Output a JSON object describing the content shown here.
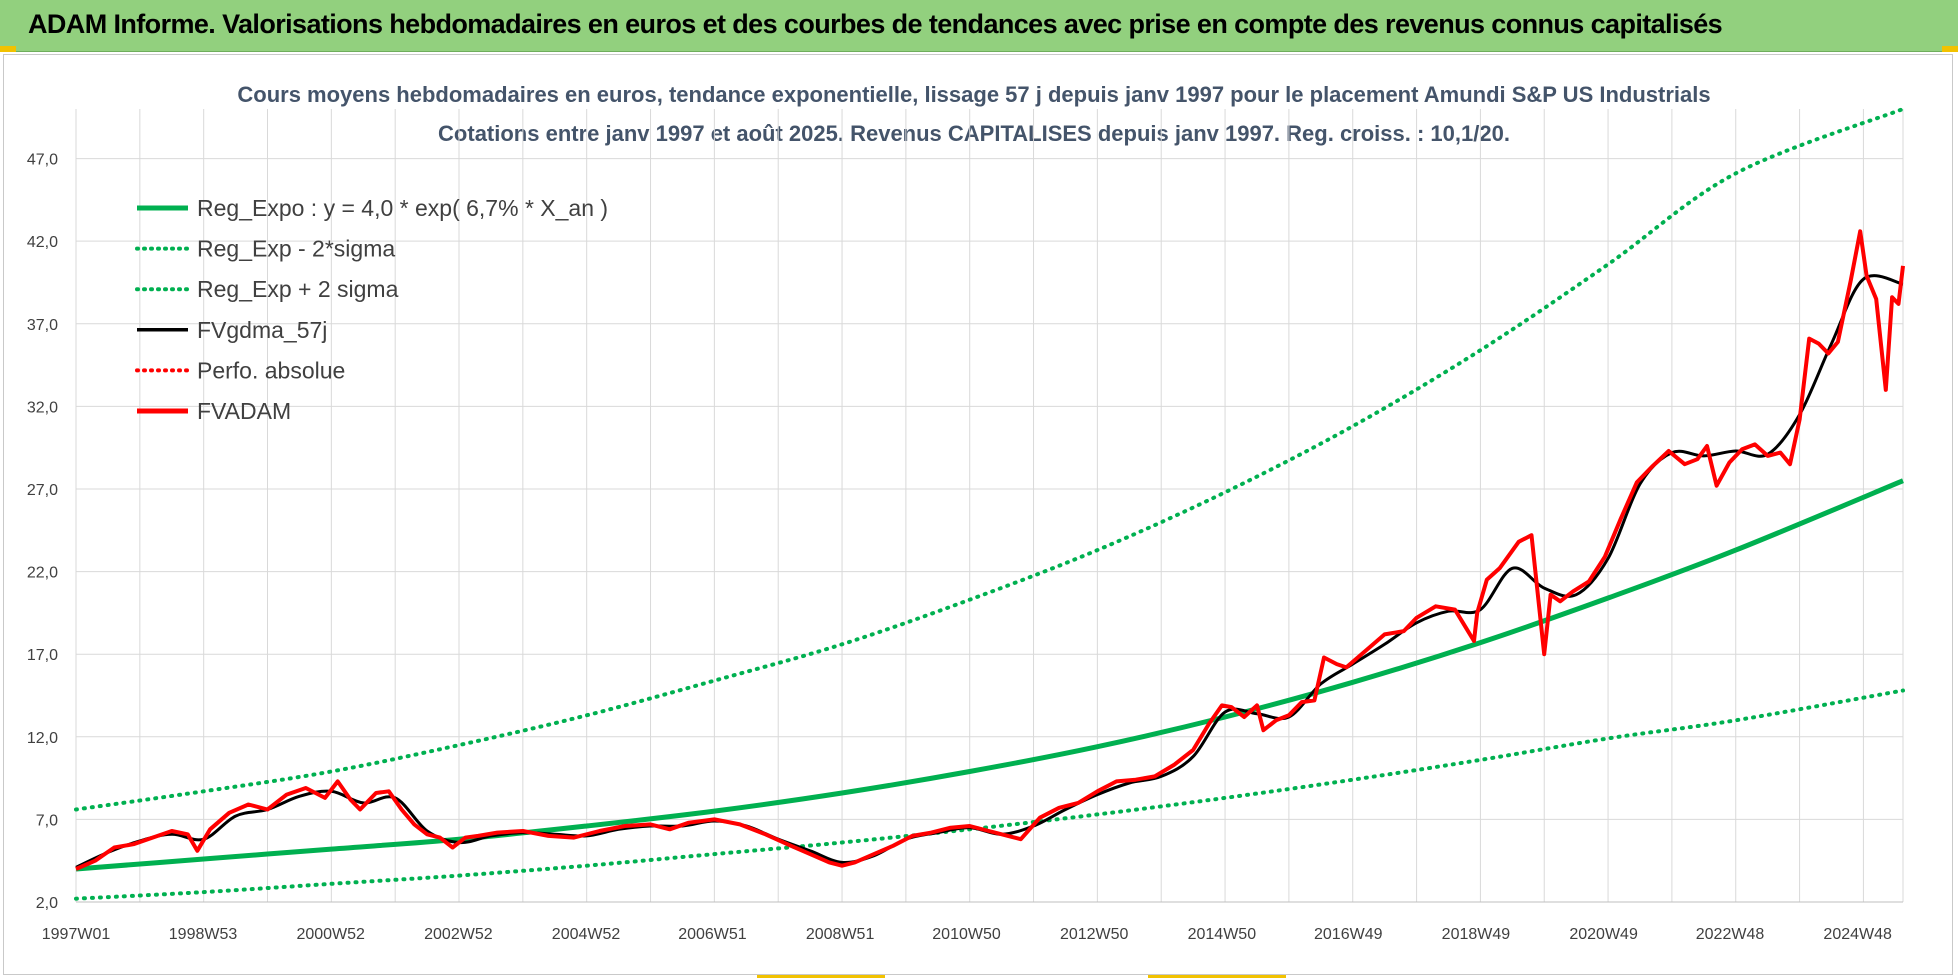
{
  "banner": {
    "title": "ADAM Informe. Valorisations hebdomadaires en euros et des courbes de tendances avec prise en compte des revenus connus capitalisés"
  },
  "colors": {
    "banner_bg": "#92d07e",
    "trend": "#00b050",
    "gdma": "#000000",
    "fvadam": "#ff0000",
    "grid": "#d9d9d9",
    "title": "#44546a"
  },
  "chart_data": {
    "type": "line",
    "title": "Cours moyens hebdomadaires en euros, tendance exponentielle, lissage 57 j depuis janv 1997 pour le placement Amundi S&P US Industrials",
    "subtitle": "Cotations entre janv 1997 et août 2025. Revenus CAPITALISES depuis janv 1997. Reg. croiss. : 10,1/20.",
    "xlabel": "",
    "ylabel": "",
    "x_range": [
      1997.0,
      2025.62
    ],
    "ylim": [
      2.0,
      50.0
    ],
    "y_ticks": [
      "2,0",
      "7,0",
      "12,0",
      "17,0",
      "22,0",
      "27,0",
      "32,0",
      "37,0",
      "42,0",
      "47,0"
    ],
    "x_ticks": [
      {
        "label": "1997W01",
        "x": 1997.0
      },
      {
        "label": "1998W53",
        "x": 1998.99
      },
      {
        "label": "2000W52",
        "x": 2000.99
      },
      {
        "label": "2002W52",
        "x": 2002.99
      },
      {
        "label": "2004W52",
        "x": 2004.99
      },
      {
        "label": "2006W51",
        "x": 2006.97
      },
      {
        "label": "2008W51",
        "x": 2008.97
      },
      {
        "label": "2010W50",
        "x": 2010.95
      },
      {
        "label": "2012W50",
        "x": 2012.95
      },
      {
        "label": "2014W50",
        "x": 2014.95
      },
      {
        "label": "2016W49",
        "x": 2016.93
      },
      {
        "label": "2018W49",
        "x": 2018.93
      },
      {
        "label": "2020W49",
        "x": 2020.93
      },
      {
        "label": "2022W48",
        "x": 2022.91
      },
      {
        "label": "2024W48",
        "x": 2024.91
      }
    ],
    "grid": true,
    "legend_position": "top-left",
    "legend": [
      {
        "label": "Reg_Expo : y = 4,0 * exp( 6,7% *  X_an )",
        "color": "#00b050",
        "style": "solid-thick"
      },
      {
        "label": "Reg_Exp - 2*sigma",
        "color": "#00b050",
        "style": "dotted"
      },
      {
        "label": "Reg_Exp + 2 sigma",
        "color": "#00b050",
        "style": "dotted"
      },
      {
        "label": "FVgdma_57j",
        "color": "#000000",
        "style": "solid"
      },
      {
        "label": "Perfo. absolue",
        "color": "#ff0000",
        "style": "dotted"
      },
      {
        "label": "FVADAM",
        "color": "#ff0000",
        "style": "solid-thick"
      }
    ],
    "trend_x": [
      1997.0,
      1999.0,
      2001.0,
      2003.0,
      2005.0,
      2007.0,
      2009.0,
      2011.0,
      2013.0,
      2015.0,
      2017.0,
      2019.0,
      2021.0,
      2023.0,
      2025.62
    ],
    "series": [
      {
        "name": "Reg_Expo : y = 4,0 * exp( 6,7% *  X_an )",
        "values": [
          4.0,
          4.6,
          5.2,
          5.8,
          6.6,
          7.5,
          8.6,
          9.9,
          11.4,
          13.2,
          15.3,
          17.7,
          20.4,
          23.3,
          27.5
        ]
      },
      {
        "name": "Reg_Exp - 2*sigma",
        "values": [
          2.2,
          2.6,
          3.1,
          3.6,
          4.2,
          4.9,
          5.6,
          6.4,
          7.3,
          8.3,
          9.4,
          10.6,
          11.9,
          13.0,
          14.8
        ]
      },
      {
        "name": "Reg_Exp + 2 sigma",
        "values": [
          7.6,
          8.7,
          9.9,
          11.5,
          13.3,
          15.4,
          17.6,
          20.3,
          23.3,
          26.8,
          30.8,
          35.4,
          40.6,
          46.1,
          50.0
        ]
      },
      {
        "name": "FVADAM",
        "x": [
          1997.0,
          1997.3,
          1997.6,
          1997.9,
          1998.2,
          1998.5,
          1998.75,
          1998.9,
          1999.1,
          1999.4,
          1999.7,
          2000.0,
          2000.3,
          2000.6,
          2000.9,
          2001.1,
          2001.3,
          2001.45,
          2001.7,
          2001.9,
          2002.1,
          2002.3,
          2002.5,
          2002.7,
          2002.9,
          2003.1,
          2003.3,
          2003.6,
          2004.0,
          2004.4,
          2004.8,
          2005.2,
          2005.6,
          2006.0,
          2006.3,
          2006.6,
          2007.0,
          2007.4,
          2007.8,
          2008.2,
          2008.5,
          2008.8,
          2009.0,
          2009.2,
          2009.5,
          2009.8,
          2010.1,
          2010.4,
          2010.7,
          2011.0,
          2011.3,
          2011.6,
          2011.8,
          2012.1,
          2012.4,
          2012.7,
          2013.0,
          2013.3,
          2013.6,
          2013.9,
          2014.2,
          2014.5,
          2014.75,
          2014.95,
          2015.1,
          2015.3,
          2015.5,
          2015.6,
          2015.8,
          2016.0,
          2016.2,
          2016.4,
          2016.55,
          2016.75,
          2016.9,
          2017.2,
          2017.5,
          2017.8,
          2018.0,
          2018.3,
          2018.6,
          2018.9,
          2018.95,
          2019.1,
          2019.3,
          2019.6,
          2019.8,
          2020.0,
          2020.1,
          2020.25,
          2020.45,
          2020.7,
          2020.95,
          2021.2,
          2021.45,
          2021.7,
          2021.95,
          2022.2,
          2022.4,
          2022.55,
          2022.7,
          2022.9,
          2023.1,
          2023.3,
          2023.5,
          2023.7,
          2023.85,
          2024.0,
          2024.15,
          2024.3,
          2024.45,
          2024.6,
          2024.8,
          2024.95,
          2025.05,
          2025.2,
          2025.35,
          2025.45,
          2025.55,
          2025.62
        ],
        "values": [
          4.0,
          4.5,
          5.3,
          5.5,
          5.9,
          6.3,
          6.1,
          5.1,
          6.4,
          7.4,
          7.9,
          7.6,
          8.5,
          8.9,
          8.3,
          9.3,
          8.2,
          7.6,
          8.6,
          8.7,
          7.6,
          6.7,
          6.1,
          5.9,
          5.3,
          5.9,
          6.0,
          6.2,
          6.3,
          6.0,
          5.9,
          6.3,
          6.6,
          6.7,
          6.4,
          6.8,
          7.0,
          6.7,
          6.1,
          5.4,
          4.9,
          4.4,
          4.2,
          4.4,
          4.9,
          5.4,
          6.0,
          6.2,
          6.5,
          6.6,
          6.3,
          6.0,
          5.8,
          7.1,
          7.7,
          8.0,
          8.7,
          9.3,
          9.4,
          9.6,
          10.3,
          11.2,
          12.8,
          13.9,
          13.8,
          13.2,
          13.9,
          12.4,
          13.0,
          13.3,
          14.1,
          14.2,
          16.8,
          16.4,
          16.2,
          17.2,
          18.2,
          18.4,
          19.2,
          19.9,
          19.7,
          17.8,
          19.5,
          21.5,
          22.2,
          23.8,
          24.2,
          17.0,
          20.6,
          20.2,
          20.8,
          21.4,
          22.9,
          25.2,
          27.4,
          28.4,
          29.3,
          28.5,
          28.8,
          29.6,
          27.2,
          28.6,
          29.4,
          29.7,
          29.0,
          29.2,
          28.5,
          31.2,
          36.1,
          35.8,
          35.2,
          35.9,
          39.6,
          42.6,
          39.9,
          38.5,
          33.0,
          38.6,
          38.2,
          40.5
        ]
      },
      {
        "name": "FVgdma_57j",
        "x": [
          1997.0,
          1997.5,
          1998.0,
          1998.5,
          1999.0,
          1999.5,
          2000.0,
          2000.5,
          2001.0,
          2001.5,
          2002.0,
          2002.5,
          2003.0,
          2003.5,
          2004.0,
          2004.5,
          2005.0,
          2005.5,
          2006.0,
          2006.5,
          2007.0,
          2007.5,
          2008.0,
          2008.5,
          2009.0,
          2009.5,
          2010.0,
          2010.5,
          2011.0,
          2011.5,
          2012.0,
          2012.5,
          2013.0,
          2013.5,
          2014.0,
          2014.5,
          2015.0,
          2015.5,
          2016.0,
          2016.5,
          2017.0,
          2017.5,
          2018.0,
          2018.5,
          2019.0,
          2019.5,
          2020.0,
          2020.5,
          2021.0,
          2021.5,
          2022.0,
          2022.5,
          2023.0,
          2023.5,
          2024.0,
          2024.5,
          2025.0,
          2025.62
        ],
        "values": [
          4.1,
          5.0,
          5.7,
          6.1,
          5.8,
          7.2,
          7.6,
          8.4,
          8.7,
          8.0,
          8.3,
          6.3,
          5.6,
          6.0,
          6.2,
          6.1,
          6.0,
          6.4,
          6.6,
          6.6,
          6.9,
          6.6,
          5.8,
          5.1,
          4.4,
          4.8,
          5.8,
          6.2,
          6.5,
          6.1,
          6.6,
          7.6,
          8.5,
          9.2,
          9.6,
          10.8,
          13.5,
          13.4,
          13.2,
          15.2,
          16.4,
          17.6,
          18.9,
          19.6,
          19.7,
          22.2,
          21.0,
          20.6,
          22.8,
          27.3,
          29.2,
          29.0,
          29.3,
          29.1,
          31.5,
          35.8,
          39.7,
          39.4
        ]
      }
    ]
  }
}
